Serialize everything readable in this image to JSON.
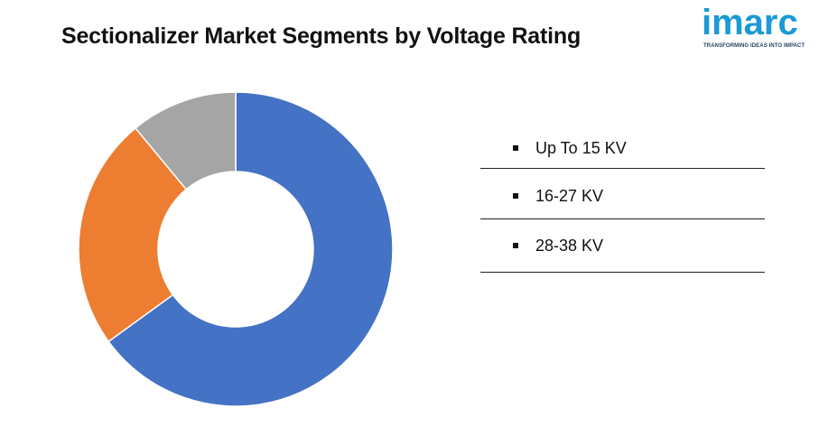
{
  "header": {
    "title": "Sectionalizer Market Segments by Voltage Rating"
  },
  "logo": {
    "word": "imarc",
    "tagline": "TRANSFORMING IDEAS INTO IMPACT",
    "color": "#1a9ad6"
  },
  "chart_data": {
    "type": "pie",
    "donut": true,
    "title": "Sectionalizer Market Segments by Voltage Rating",
    "categories": [
      "Up To 15 KV",
      "16-27 KV",
      "28-38 KV"
    ],
    "values": [
      65,
      24,
      11
    ],
    "colors": [
      "#4472c4",
      "#ed7d31",
      "#a5a5a5"
    ],
    "legend": "right",
    "start_angle": "12 o'clock, clockwise"
  },
  "legend": {
    "items": [
      {
        "label": "Up To 15 KV"
      },
      {
        "label": "16-27 KV"
      },
      {
        "label": "28-38 KV"
      }
    ]
  }
}
